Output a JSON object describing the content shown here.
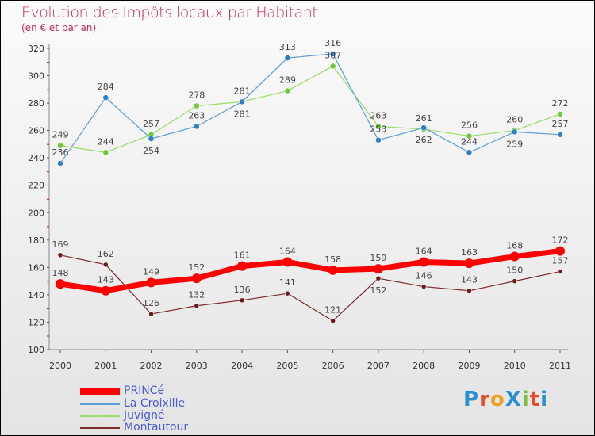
{
  "chart_data": {
    "type": "line",
    "title": "Evolution des Impôts locaux par Habitant",
    "subtitle": "(en € et par an)",
    "xlabel": "",
    "ylabel": "",
    "x": [
      "2000",
      "2001",
      "2002",
      "2003",
      "2004",
      "2005",
      "2006",
      "2007",
      "2008",
      "2009",
      "2010",
      "2011"
    ],
    "ylim": [
      100,
      320
    ],
    "yticks": [
      100,
      120,
      140,
      160,
      180,
      200,
      220,
      240,
      260,
      280,
      300,
      320
    ],
    "grid": false,
    "legend": "bottom-left",
    "series": [
      {
        "name": "PRINCé",
        "color": "#ff0000",
        "dot": "#ff0000",
        "width": 7,
        "r": 6,
        "values": [
          148,
          143,
          149,
          152,
          161,
          164,
          158,
          159,
          164,
          163,
          168,
          172
        ]
      },
      {
        "name": "La Croixille",
        "color": "#5a9fd4",
        "dot": "#2f7fc2",
        "width": 1.2,
        "r": 3.5,
        "values": [
          236,
          284,
          254,
          263,
          281,
          313,
          316,
          253,
          262,
          244,
          259,
          257
        ]
      },
      {
        "name": "Juvigné",
        "color": "#99dd66",
        "dot": "#6cc93a",
        "width": 1.2,
        "r": 3.5,
        "values": [
          249,
          244,
          257,
          278,
          281,
          289,
          307,
          263,
          261,
          256,
          260,
          272
        ]
      },
      {
        "name": "Montautour",
        "color": "#7a2a2a",
        "dot": "#6b1a1a",
        "width": 1.2,
        "r": 3,
        "values": [
          169,
          162,
          126,
          132,
          136,
          141,
          121,
          152,
          146,
          143,
          150,
          157
        ]
      }
    ]
  },
  "logo": "ProXiti"
}
